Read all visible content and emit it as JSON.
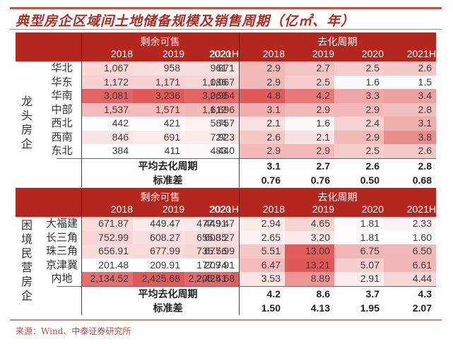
{
  "title": "典型房企区域间土地储备规模及销售周期（亿㎡、年）",
  "source": "来源：Wind、中泰证券研究所",
  "headers": {
    "remaining": "剩余可售",
    "cycle": "去化周期",
    "years": [
      "2018",
      "2019",
      "2020",
      "2021H"
    ]
  },
  "colors": {
    "header_bg": "#b3271f",
    "title": "#b02a23",
    "heat_max": "#e05a5a",
    "heat_min": "#ffffff"
  },
  "sections": [
    {
      "label": "龙头房企",
      "label_chars": [
        "龙",
        "头",
        "房",
        "企"
      ],
      "rows": [
        {
          "region": "华北",
          "remaining": [
            "1,067",
            "958",
            "961",
            "871"
          ],
          "cycle": [
            "2.9",
            "2.7",
            "2.5",
            "2.6"
          ]
        },
        {
          "region": "华东",
          "remaining": [
            "1,172",
            "1,171",
            "1,086",
            "1,067"
          ],
          "cycle": [
            "2.9",
            "2.5",
            "1.6",
            "1.5"
          ]
        },
        {
          "region": "华南",
          "remaining": [
            "3,081",
            "3,236",
            "3,069",
            "2,954"
          ],
          "cycle": [
            "4.8",
            "4.2",
            "3.3",
            "3.4"
          ]
        },
        {
          "region": "中部",
          "remaining": [
            "1,537",
            "1,571",
            "1,612",
            "1,696"
          ],
          "cycle": [
            "3.1",
            "2.9",
            "2.9",
            "2.8"
          ]
        },
        {
          "region": "西北",
          "remaining": [
            "442",
            "421",
            "584",
            "757"
          ],
          "cycle": [
            "2.1",
            "1.6",
            "2.4",
            "3.1"
          ]
        },
        {
          "region": "西南",
          "remaining": [
            "846",
            "691",
            "727",
            "923"
          ],
          "cycle": [
            "2.6",
            "2.1",
            "2.9",
            "3.8"
          ]
        },
        {
          "region": "东北",
          "remaining": [
            "384",
            "411",
            "483",
            "440"
          ],
          "cycle": [
            "2.9",
            "2.9",
            "2.5",
            "2.6"
          ]
        }
      ],
      "avg_label": "平均去化周期",
      "avg": [
        "3.1",
        "2.7",
        "2.6",
        "2.8"
      ],
      "std_label": "标准差",
      "std": [
        "0.76",
        "0.76",
        "0.50",
        "0.68"
      ]
    },
    {
      "label": "困境民营房企",
      "label_chars": [
        "困",
        "境",
        "民",
        "营",
        "房",
        "企"
      ],
      "rows": [
        {
          "region": "大福建",
          "remaining": [
            "671.87",
            "449.47",
            "477.91",
            "449.47"
          ],
          "cycle": [
            "2.94",
            "4.65",
            "1.81",
            "2.33"
          ]
        },
        {
          "region": "长三角",
          "remaining": [
            "752.99",
            "608.27",
            "655.35",
            "608.27"
          ],
          "cycle": [
            "2.65",
            "3.20",
            "1.81",
            "1.60"
          ]
        },
        {
          "region": "珠三角",
          "remaining": [
            "656.91",
            "677.99",
            "735.56",
            "677.99"
          ],
          "cycle": [
            "5.51",
            "13.00",
            "6.75",
            "6.50"
          ]
        },
        {
          "region": "京津冀",
          "remaining": [
            "201.48",
            "209.91",
            "177.74",
            "209.91"
          ],
          "cycle": [
            "6.47",
            "13.21",
            "5.07",
            "6.61"
          ]
        },
        {
          "region": "内地",
          "remaining": [
            "2,134.52",
            "2,425.68",
            "2,205.41",
            "2,425.68"
          ],
          "cycle": [
            "3.53",
            "8.89",
            "2.91",
            "4.44"
          ]
        }
      ],
      "avg_label": "平均去化周期",
      "avg": [
        "4.2",
        "8.6",
        "3.7",
        "4.3"
      ],
      "std_label": "标准差",
      "std": [
        "1.50",
        "4.13",
        "1.95",
        "2.07"
      ]
    }
  ]
}
